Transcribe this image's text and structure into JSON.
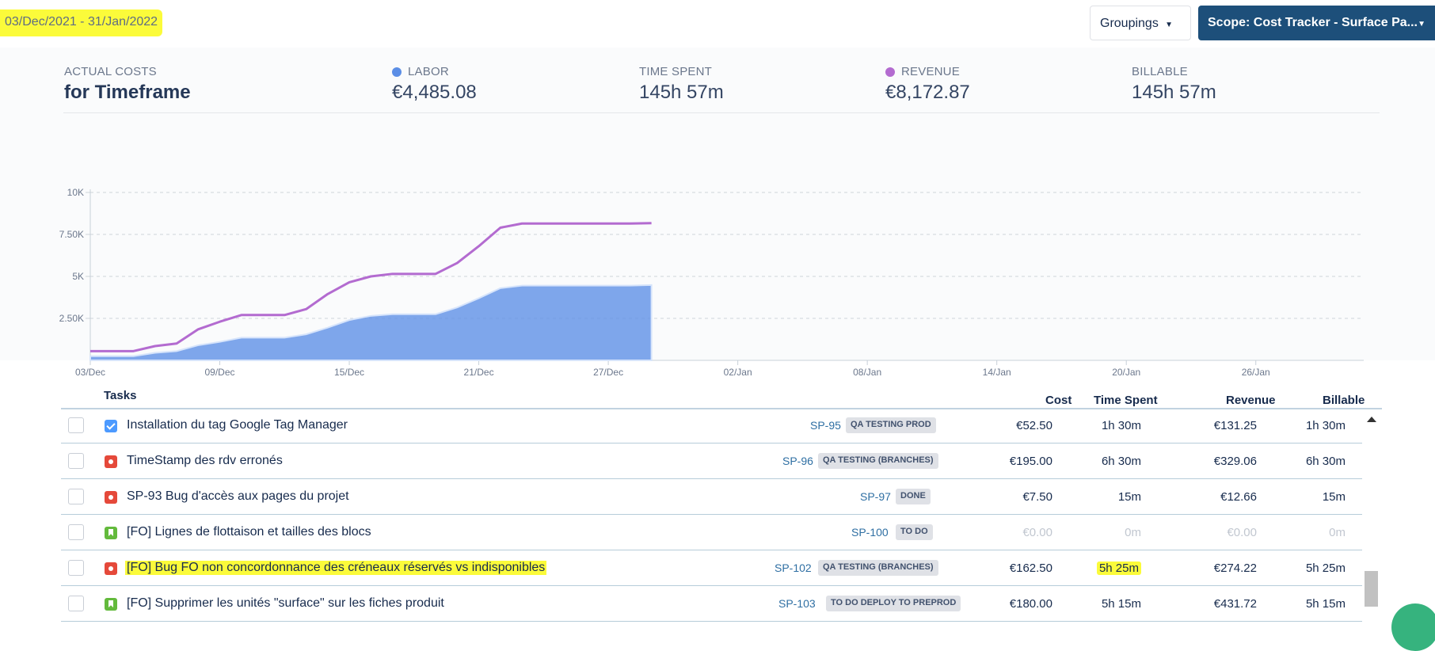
{
  "header": {
    "date_range": "03/Dec/2021 - 31/Jan/2022",
    "groupings_label": "Groupings",
    "scope_label": "Scope: Cost Tracker - Surface Pa..."
  },
  "summary": {
    "title_small": "ACTUAL COSTS",
    "title_big": "for Timeframe",
    "labor_label": "LABOR",
    "labor_value": "€4,485.08",
    "time_spent_label": "TIME SPENT",
    "time_spent_value": "145h 57m",
    "revenue_label": "REVENUE",
    "revenue_value": "€8,172.87",
    "billable_label": "BILLABLE",
    "billable_value": "145h 57m"
  },
  "colors": {
    "labor": "#5b8ee6",
    "revenue": "#b36bd0",
    "highlight": "#fbfb3a",
    "scope_bg": "#1d4f7a"
  },
  "chart_data": {
    "type": "area",
    "y_ticks": [
      "10K",
      "7.50K",
      "5K",
      "2.50K"
    ],
    "ylim": [
      0,
      10000
    ],
    "x_tick_labels": [
      "03/Dec",
      "09/Dec",
      "15/Dec",
      "21/Dec",
      "27/Dec",
      "02/Jan",
      "08/Jan",
      "14/Jan",
      "20/Jan",
      "26/Jan"
    ],
    "x_tick_days": [
      0,
      6,
      12,
      18,
      24,
      30,
      36,
      42,
      48,
      54
    ],
    "x_max_day": 59,
    "grid": true,
    "series": [
      {
        "name": "LABOR",
        "style": "area",
        "x": [
          "03/Dec",
          "04/Dec",
          "05/Dec",
          "06/Dec",
          "07/Dec",
          "08/Dec",
          "09/Dec",
          "10/Dec",
          "11/Dec",
          "12/Dec",
          "13/Dec",
          "14/Dec",
          "15/Dec",
          "16/Dec",
          "17/Dec",
          "18/Dec",
          "19/Dec",
          "20/Dec",
          "21/Dec",
          "22/Dec",
          "23/Dec",
          "24/Dec",
          "25/Dec",
          "26/Dec",
          "27/Dec",
          "28/Dec",
          "29/Dec"
        ],
        "values": [
          250,
          250,
          250,
          450,
          550,
          900,
          1100,
          1350,
          1350,
          1350,
          1550,
          1950,
          2400,
          2650,
          2750,
          2750,
          2750,
          3150,
          3700,
          4300,
          4450,
          4450,
          4450,
          4450,
          4450,
          4450,
          4485
        ]
      },
      {
        "name": "REVENUE",
        "style": "line",
        "x": [
          "03/Dec",
          "04/Dec",
          "05/Dec",
          "06/Dec",
          "07/Dec",
          "08/Dec",
          "09/Dec",
          "10/Dec",
          "11/Dec",
          "12/Dec",
          "13/Dec",
          "14/Dec",
          "15/Dec",
          "16/Dec",
          "17/Dec",
          "18/Dec",
          "19/Dec",
          "20/Dec",
          "21/Dec",
          "22/Dec",
          "23/Dec",
          "24/Dec",
          "25/Dec",
          "26/Dec",
          "27/Dec",
          "28/Dec",
          "29/Dec"
        ],
        "values": [
          550,
          550,
          550,
          850,
          1000,
          1850,
          2300,
          2700,
          2700,
          2700,
          3050,
          3950,
          4650,
          5000,
          5150,
          5150,
          5150,
          5800,
          6800,
          7900,
          8150,
          8150,
          8150,
          8150,
          8150,
          8150,
          8173
        ]
      }
    ]
  },
  "table": {
    "headers": {
      "tasks": "Tasks",
      "cost": "Cost",
      "time_spent": "Time Spent",
      "revenue": "Revenue",
      "billable": "Billable"
    },
    "rows": [
      {
        "icon": "task",
        "title": "Installation du tag Google Tag Manager",
        "key": "SP-95",
        "status": "QA TESTING PROD",
        "cost": "€52.50",
        "time": "1h 30m",
        "revenue": "€131.25",
        "billable": "1h 30m"
      },
      {
        "icon": "bug",
        "title": "TimeStamp des rdv erronés",
        "key": "SP-96",
        "status": "QA TESTING (BRANCHES)",
        "cost": "€195.00",
        "time": "6h 30m",
        "revenue": "€329.06",
        "billable": "6h 30m"
      },
      {
        "icon": "bug",
        "title": "SP-93 Bug d'accès aux pages du projet",
        "key": "SP-97",
        "status": "DONE",
        "cost": "€7.50",
        "time": "15m",
        "revenue": "€12.66",
        "billable": "15m"
      },
      {
        "icon": "story",
        "title": "[FO] Lignes de flottaison et tailles des blocs",
        "key": "SP-100",
        "status": "TO DO",
        "cost": "€0.00",
        "time": "0m",
        "revenue": "€0.00",
        "billable": "0m"
      },
      {
        "icon": "bug",
        "title": "[FO] Bug FO non concordonnance des créneaux réservés vs indisponibles",
        "key": "SP-102",
        "status": "QA TESTING (BRANCHES)",
        "cost": "€162.50",
        "time": "5h 25m",
        "revenue": "€274.22",
        "billable": "5h 25m"
      },
      {
        "icon": "story",
        "title": "[FO] Supprimer les unités \"surface\" sur les fiches produit",
        "key": "SP-103",
        "status": "TO DO DEPLOY TO PREPROD",
        "cost": "€180.00",
        "time": "5h 15m",
        "revenue": "€431.72",
        "billable": "5h 15m"
      }
    ]
  }
}
